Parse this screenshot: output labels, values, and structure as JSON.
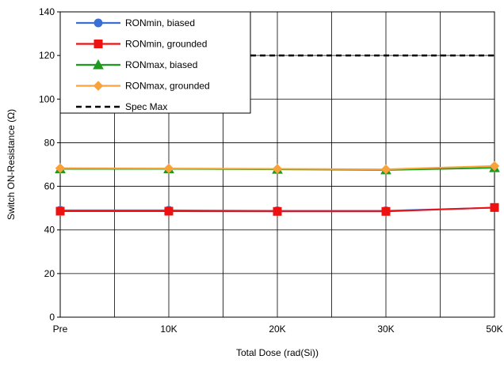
{
  "chart_data": {
    "type": "line",
    "xlabel": "Total Dose (rad(Si))",
    "ylabel": "Switch ON-Resistance (Ω)",
    "x_tick_labels": [
      "Pre",
      "10K",
      "20K",
      "30K",
      "50K"
    ],
    "x": [
      0,
      10,
      20,
      30,
      40
    ],
    "ylim": [
      0,
      140
    ],
    "y_ticks": [
      0,
      20,
      40,
      60,
      80,
      100,
      120,
      140
    ],
    "grid": true,
    "legend_position": "top-left",
    "series": [
      {
        "name": "RONmin, biased",
        "color": "#3a6fd8",
        "marker": "circle",
        "values": [
          49,
          49,
          48.8,
          48.8,
          50.2
        ]
      },
      {
        "name": "RONmin, grounded",
        "color": "#ee1111",
        "marker": "square",
        "values": [
          48.6,
          48.6,
          48.5,
          48.5,
          50.3
        ]
      },
      {
        "name": "RONmax, biased",
        "color": "#1f9a1f",
        "marker": "triangle",
        "values": [
          68,
          68,
          67.8,
          67.5,
          68.5
        ]
      },
      {
        "name": "RONmax, grounded",
        "color": "#f9a23a",
        "marker": "diamond",
        "values": [
          68.3,
          68.2,
          68,
          67.8,
          69.3
        ]
      },
      {
        "name": "Spec Max",
        "color": "#000000",
        "marker": "none",
        "dashed": true,
        "values": [
          120,
          120,
          120,
          120,
          120
        ]
      }
    ]
  }
}
